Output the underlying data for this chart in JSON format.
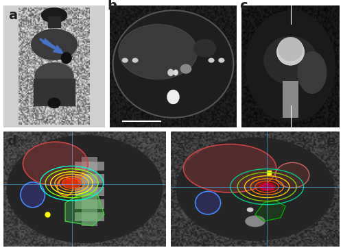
{
  "figure_width": 5.0,
  "figure_height": 3.65,
  "dpi": 100,
  "bg_color": "#ffffff",
  "panel_labels": [
    "a",
    "b",
    "c",
    "d",
    "e"
  ],
  "panel_label_fontsize": 14,
  "panel_label_color": "#222222",
  "panel_bg_pet": "#c8c8c8",
  "panel_bg_ct_axial": "#000000",
  "panel_bg_ct_coronal": "#000000",
  "panel_bg_dose_coronal": "#555555",
  "panel_bg_dose_axial": "#555555",
  "arrow_color": "#4472c4",
  "grid_line_color": "#4db8ff",
  "contour_colors": [
    "#ff6666",
    "#cc0000",
    "#ff9900",
    "#ffff00",
    "#00cc00",
    "#00cccc",
    "#cc00cc",
    "#ff66ff",
    "#6666ff",
    "#0000cc",
    "#00ff88"
  ],
  "organ_fill_colors": {
    "liver": "#cc444488",
    "kidney_left": "#4444cc88",
    "kidney_right": "#4444cc88",
    "bowel": "#44cc4488",
    "spinal_cord": "#cc440044",
    "tumor": "#cc44cc99"
  }
}
